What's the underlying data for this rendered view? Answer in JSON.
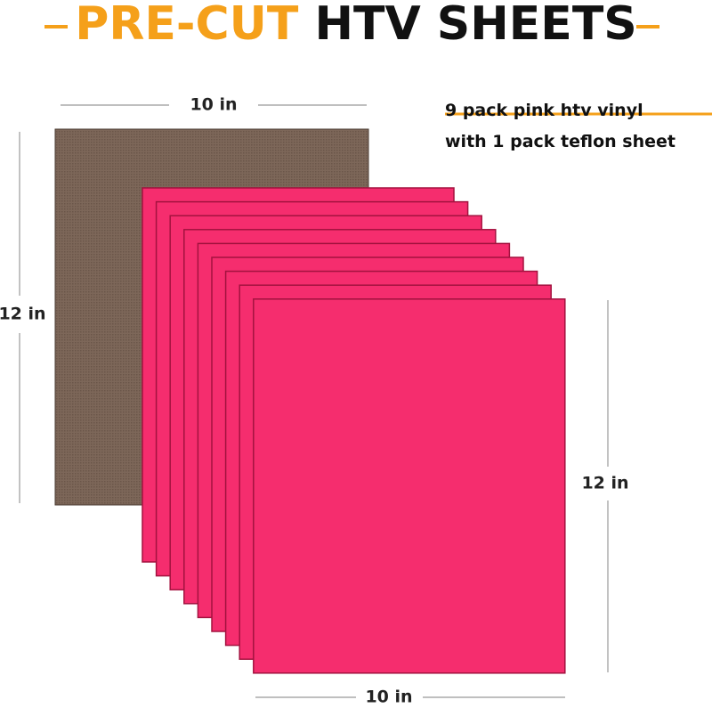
{
  "header": {
    "title_highlight": "PRE-CUT",
    "title_rest": "HTV SHEETS"
  },
  "dimensions": {
    "teflon_width": "10 in",
    "teflon_height": "12 in",
    "vinyl_height": "12 in",
    "vinyl_width": "10 in"
  },
  "description": {
    "line1": "9 pack pink htv vinyl",
    "line2": "with 1 pack teflon sheet"
  }
}
